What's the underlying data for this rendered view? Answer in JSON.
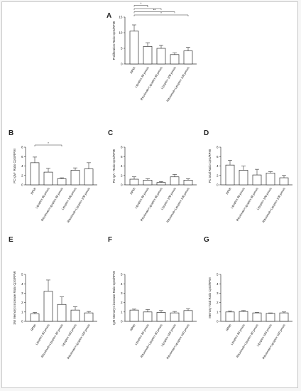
{
  "figure_colors": {
    "axis": "#333333",
    "bar_fill": "#ffffff",
    "bar_stroke": "#333333",
    "background": "#ffffff",
    "frame": "#c9c9c9"
  },
  "categories": [
    "RPMI",
    "Lipoplex 80 pmols",
    "Rituximab+Lipoplex 80 pmols",
    "Lipoplex 100 pmols",
    "Rituximab+Lipoplex 100 pmols"
  ],
  "chart_data": [
    {
      "panel": "A",
      "type": "bar",
      "ylabel": "Proliferation Ratio CpG/RPMI",
      "ylim": [
        0,
        15
      ],
      "yticks": [
        0,
        5,
        10,
        15
      ],
      "categories": [
        "RPMI",
        "Lipoplex 80 pmols",
        "Rituximab+Lipoplex 80 pmols",
        "Lipoplex 100 pmols",
        "Rituximab+Lipoplex 100 pmols"
      ],
      "values": [
        10.5,
        5.6,
        5.0,
        3.0,
        4.2
      ],
      "errors": [
        2.0,
        1.2,
        1.0,
        0.6,
        1.1
      ],
      "significance": [
        {
          "from": 0,
          "to": 1,
          "label": "*"
        },
        {
          "from": 0,
          "to": 2,
          "label": "*"
        },
        {
          "from": 0,
          "to": 3,
          "label": "**"
        },
        {
          "from": 0,
          "to": 4,
          "label": "*"
        }
      ]
    },
    {
      "panel": "B",
      "type": "bar",
      "ylabel": "PC IgM⁺ Ratio CpG/RPMI",
      "ylim": [
        0,
        8
      ],
      "yticks": [
        0,
        2,
        4,
        6,
        8
      ],
      "categories": [
        "RPMI",
        "Lipoplex 80 pmols",
        "Rituximab+Lipoplex 80 pmols",
        "Lipoplex 100 pmols",
        "Rituximab+Lipoplex 100 pmols"
      ],
      "values": [
        4.7,
        2.7,
        1.3,
        3.1,
        3.4
      ],
      "errors": [
        1.2,
        0.8,
        0.2,
        0.5,
        1.3
      ],
      "significance": [
        {
          "from": 0,
          "to": 2,
          "label": "*"
        }
      ]
    },
    {
      "panel": "C",
      "type": "bar",
      "ylabel": "PC IgA⁺ Ratio CpG/RPMI",
      "ylim": [
        0,
        8
      ],
      "yticks": [
        0,
        2,
        4,
        6,
        8
      ],
      "categories": [
        "RPMI",
        "Lipoplex 80 pmols",
        "Rituximab+Lipoplex 80 pmols",
        "Lipoplex 100 pmols",
        "Rituximab+Lipoplex 100 pmols"
      ],
      "values": [
        1.2,
        1.0,
        0.5,
        1.7,
        1.0
      ],
      "errors": [
        0.5,
        0.3,
        0.2,
        0.5,
        0.3
      ],
      "significance": []
    },
    {
      "panel": "D",
      "type": "bar",
      "ylabel": "PC total Ratio CpG/RPMI",
      "ylim": [
        0,
        8
      ],
      "yticks": [
        0,
        2,
        4,
        6,
        8
      ],
      "categories": [
        "RPMI",
        "Lipoplex 80 pmols",
        "Rituximab+Lipoplex 80 pmols",
        "Lipoplex 100 pmols",
        "Rituximab+Lipoplex 100 pmols"
      ],
      "values": [
        4.2,
        3.1,
        2.1,
        2.5,
        1.5
      ],
      "errors": [
        1.0,
        0.9,
        1.2,
        0.3,
        0.5
      ],
      "significance": []
    },
    {
      "panel": "E",
      "type": "bar",
      "ylabel": "SW Memory's increase Ratio CpG/RPMI",
      "ylim": [
        0,
        5
      ],
      "yticks": [
        0,
        1,
        2,
        3,
        4,
        5
      ],
      "categories": [
        "RPMI",
        "Lipoplex 80 pmols",
        "Rituximab+Lipoplex 80 pmols",
        "Lipoplex 100 pmols",
        "Rituximab+Lipoplex 100 pmols"
      ],
      "values": [
        0.8,
        3.2,
        1.8,
        1.2,
        0.9
      ],
      "errors": [
        0.15,
        1.2,
        0.8,
        0.35,
        0.15
      ],
      "significance": []
    },
    {
      "panel": "F",
      "type": "bar",
      "ylabel": "IgM Memory's increase Ratio CpG/RPMI",
      "ylim": [
        0,
        5
      ],
      "yticks": [
        0,
        1,
        2,
        3,
        4,
        5
      ],
      "categories": [
        "RPMI",
        "Lipoplex 80 pmols",
        "Rituximab+Lipoplex 80 pmols",
        "Lipoplex 100 pmols",
        "Rituximab+Lipoplex 100 pmols"
      ],
      "values": [
        1.2,
        1.0,
        0.95,
        0.9,
        1.15
      ],
      "errors": [
        0.1,
        0.25,
        0.2,
        0.15,
        0.2
      ],
      "significance": []
    },
    {
      "panel": "G",
      "type": "bar",
      "ylabel": "Memory Total Ratio CpG/RPMI",
      "ylim": [
        0,
        5
      ],
      "yticks": [
        0,
        1,
        2,
        3,
        4,
        5
      ],
      "categories": [
        "RPMI",
        "Lipoplex 80 pmols",
        "Rituximab+Lipoplex 80 pmols",
        "Lipoplex 100 pmols",
        "Rituximab+Lipoplex 100 pmols"
      ],
      "values": [
        1.0,
        1.05,
        0.9,
        0.85,
        0.9
      ],
      "errors": [
        0.1,
        0.1,
        0.05,
        0.05,
        0.1
      ],
      "significance": []
    }
  ]
}
